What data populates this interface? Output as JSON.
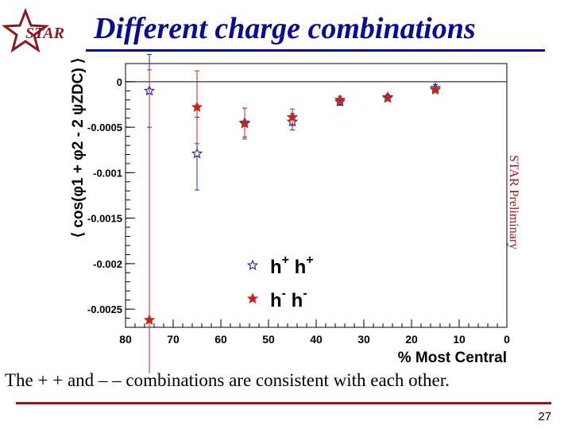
{
  "slide": {
    "title": "Different charge combinations",
    "caption": "The + + and – – combinations are consistent with each other.",
    "page_number": "27",
    "logo_text": "STAR"
  },
  "colors": {
    "title": "#0b0b8c",
    "series_pp": "#1f2fa3",
    "series_mm": "#c0281e",
    "rule_bottom": "#8b1a1a",
    "watermark": "#8b1a1a"
  },
  "chart_data": {
    "type": "scatter",
    "title": "",
    "xlabel": "% Most Central",
    "ylabel": "⟨ cos(φ1 + φ2 - 2 ψZDC) ⟩",
    "xlim": [
      80,
      0
    ],
    "ylim": [
      -0.0027,
      0.0002
    ],
    "x_ticks": [
      80,
      70,
      60,
      50,
      40,
      30,
      20,
      10,
      0
    ],
    "y_ticks": [
      0,
      -0.0005,
      -0.001,
      -0.0015,
      -0.002,
      -0.0025
    ],
    "y_tick_labels": [
      "0",
      "-0.0005",
      "-0.001",
      "-0.0015",
      "-0.002",
      "-0.0025"
    ],
    "watermark": "STAR Preliminary",
    "legend_position": "bottom-left",
    "series": [
      {
        "name": "h+ h+",
        "legend_main": "h",
        "legend_sup": "+",
        "color": "#1f2fa3",
        "marker": "open-star",
        "points": [
          {
            "x": 75,
            "y": -0.0001,
            "err": 0.0004
          },
          {
            "x": 65,
            "y": -0.00079,
            "err": 0.0004
          },
          {
            "x": 55,
            "y": -0.00045,
            "err": 0.00016
          },
          {
            "x": 45,
            "y": -0.00044,
            "err": 9e-05
          },
          {
            "x": 35,
            "y": -0.00022,
            "err": 4e-05
          },
          {
            "x": 25,
            "y": -0.00017,
            "err": 3e-05
          },
          {
            "x": 15,
            "y": -7e-05,
            "err": 4e-05
          }
        ]
      },
      {
        "name": "h- h-",
        "legend_main": "h",
        "legend_sup": "-",
        "color": "#c0281e",
        "marker": "filled-star",
        "points": [
          {
            "x": 75,
            "y": -0.00262,
            "err": 0.00275
          },
          {
            "x": 65,
            "y": -0.00028,
            "err": 0.0004
          },
          {
            "x": 55,
            "y": -0.00046,
            "err": 0.00017
          },
          {
            "x": 45,
            "y": -0.00039,
            "err": 9e-05
          },
          {
            "x": 35,
            "y": -0.0002,
            "err": 4e-05
          },
          {
            "x": 25,
            "y": -0.00018,
            "err": 3e-05
          },
          {
            "x": 15,
            "y": -9e-05,
            "err": 3e-05
          }
        ]
      }
    ]
  }
}
